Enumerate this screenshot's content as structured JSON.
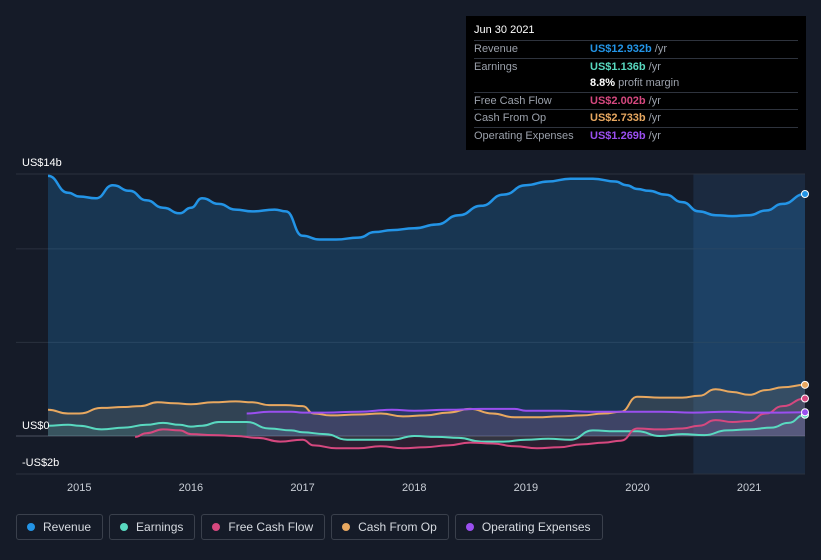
{
  "tooltip": {
    "date": "Jun 30 2021",
    "rows": [
      {
        "label": "Revenue",
        "value": "US$12.932b",
        "unit": "/yr",
        "color": "#2394e6"
      },
      {
        "label": "Earnings",
        "value": "US$1.136b",
        "unit": "/yr",
        "color": "#59d9c0"
      },
      {
        "label": "",
        "value": "8.8%",
        "unit": "profit margin",
        "color": "#ffffff"
      },
      {
        "label": "Free Cash Flow",
        "value": "US$2.002b",
        "unit": "/yr",
        "color": "#d6487f"
      },
      {
        "label": "Cash From Op",
        "value": "US$2.733b",
        "unit": "/yr",
        "color": "#e8a860"
      },
      {
        "label": "Operating Expenses",
        "value": "US$1.269b",
        "unit": "/yr",
        "color": "#9a4ff0"
      }
    ]
  },
  "legend": [
    {
      "label": "Revenue",
      "color": "#2394e6"
    },
    {
      "label": "Earnings",
      "color": "#59d9c0"
    },
    {
      "label": "Free Cash Flow",
      "color": "#d6487f"
    },
    {
      "label": "Cash From Op",
      "color": "#e8a860"
    },
    {
      "label": "Operating Expenses",
      "color": "#9a4ff0"
    }
  ],
  "chart_data": {
    "type": "line",
    "y_unit_labels": {
      "top": "US$14b",
      "zero": "US$0",
      "bottom": "-US$2b"
    },
    "ylim": [
      -2,
      14
    ],
    "xlim": [
      2014.72,
      2021.5
    ],
    "x_ticks": [
      "2015",
      "2016",
      "2017",
      "2018",
      "2019",
      "2020",
      "2021"
    ],
    "highlight_start": 2020.5,
    "series": [
      {
        "name": "Revenue",
        "color": "#2394e6",
        "fill": true,
        "x": [
          2014.72,
          2014.9,
          2015.0,
          2015.15,
          2015.3,
          2015.45,
          2015.6,
          2015.75,
          2015.9,
          2016.0,
          2016.1,
          2016.25,
          2016.4,
          2016.55,
          2016.75,
          2016.85,
          2017.0,
          2017.15,
          2017.3,
          2017.5,
          2017.65,
          2017.8,
          2018.0,
          2018.2,
          2018.4,
          2018.6,
          2018.8,
          2019.0,
          2019.2,
          2019.4,
          2019.6,
          2019.8,
          2019.9,
          2020.0,
          2020.1,
          2020.25,
          2020.4,
          2020.55,
          2020.7,
          2020.85,
          2021.0,
          2021.15,
          2021.3,
          2021.5
        ],
        "y": [
          13.9,
          13.0,
          12.8,
          12.7,
          13.4,
          13.1,
          12.6,
          12.2,
          11.9,
          12.2,
          12.7,
          12.4,
          12.1,
          12.0,
          12.1,
          12.0,
          10.7,
          10.5,
          10.5,
          10.6,
          10.9,
          11.0,
          11.1,
          11.3,
          11.8,
          12.3,
          12.9,
          13.4,
          13.6,
          13.75,
          13.75,
          13.6,
          13.4,
          13.2,
          13.1,
          12.9,
          12.5,
          12.0,
          11.8,
          11.75,
          11.8,
          12.05,
          12.4,
          12.932
        ]
      },
      {
        "name": "Earnings",
        "color": "#59d9c0",
        "x": [
          2014.72,
          2014.9,
          2015.0,
          2015.2,
          2015.4,
          2015.6,
          2015.75,
          2015.9,
          2016.0,
          2016.1,
          2016.25,
          2016.5,
          2016.7,
          2016.9,
          2017.0,
          2017.2,
          2017.4,
          2017.6,
          2017.8,
          2018.0,
          2018.2,
          2018.4,
          2018.6,
          2018.8,
          2019.0,
          2019.2,
          2019.4,
          2019.6,
          2019.8,
          2020.0,
          2020.2,
          2020.4,
          2020.6,
          2020.8,
          2021.0,
          2021.2,
          2021.35,
          2021.5
        ],
        "y": [
          0.55,
          0.6,
          0.55,
          0.35,
          0.45,
          0.6,
          0.7,
          0.6,
          0.5,
          0.55,
          0.75,
          0.75,
          0.4,
          0.3,
          0.2,
          0.1,
          -0.2,
          -0.2,
          -0.2,
          0.0,
          -0.05,
          -0.1,
          -0.3,
          -0.3,
          -0.2,
          -0.15,
          -0.2,
          0.3,
          0.25,
          0.25,
          0.0,
          0.1,
          0.05,
          0.3,
          0.35,
          0.45,
          0.7,
          1.136
        ]
      },
      {
        "name": "Free Cash Flow",
        "color": "#d6487f",
        "x": [
          2015.5,
          2015.6,
          2015.75,
          2015.9,
          2016.0,
          2016.2,
          2016.4,
          2016.6,
          2016.8,
          2017.0,
          2017.1,
          2017.3,
          2017.5,
          2017.7,
          2017.9,
          2018.1,
          2018.3,
          2018.5,
          2018.7,
          2018.9,
          2019.1,
          2019.3,
          2019.5,
          2019.7,
          2019.85,
          2020.0,
          2020.2,
          2020.4,
          2020.55,
          2020.7,
          2020.85,
          2021.0,
          2021.15,
          2021.3,
          2021.5
        ],
        "y": [
          -0.05,
          0.15,
          0.35,
          0.3,
          0.1,
          0.05,
          0.0,
          -0.1,
          -0.3,
          -0.2,
          -0.5,
          -0.65,
          -0.65,
          -0.55,
          -0.65,
          -0.6,
          -0.5,
          -0.35,
          -0.4,
          -0.55,
          -0.65,
          -0.6,
          -0.45,
          -0.35,
          -0.25,
          0.4,
          0.35,
          0.4,
          0.55,
          0.85,
          0.75,
          0.8,
          1.2,
          1.6,
          2.002
        ]
      },
      {
        "name": "Cash From Op",
        "color": "#e8a860",
        "x": [
          2014.72,
          2014.9,
          2015.0,
          2015.2,
          2015.4,
          2015.55,
          2015.7,
          2015.85,
          2016.0,
          2016.2,
          2016.4,
          2016.55,
          2016.7,
          2016.85,
          2017.0,
          2017.1,
          2017.25,
          2017.5,
          2017.7,
          2017.9,
          2018.1,
          2018.3,
          2018.5,
          2018.7,
          2018.9,
          2019.1,
          2019.3,
          2019.5,
          2019.7,
          2019.85,
          2020.0,
          2020.2,
          2020.4,
          2020.55,
          2020.7,
          2020.85,
          2021.0,
          2021.15,
          2021.3,
          2021.5
        ],
        "y": [
          1.4,
          1.2,
          1.2,
          1.5,
          1.55,
          1.6,
          1.8,
          1.75,
          1.7,
          1.8,
          1.85,
          1.8,
          1.65,
          1.65,
          1.6,
          1.2,
          1.1,
          1.15,
          1.2,
          1.05,
          1.1,
          1.25,
          1.45,
          1.2,
          1.0,
          1.0,
          1.05,
          1.1,
          1.2,
          1.3,
          2.1,
          2.05,
          2.05,
          2.15,
          2.5,
          2.35,
          2.2,
          2.45,
          2.6,
          2.733
        ]
      },
      {
        "name": "Operating Expenses",
        "color": "#9a4ff0",
        "x": [
          2016.5,
          2016.7,
          2016.9,
          2017.0,
          2017.2,
          2017.5,
          2017.8,
          2018.0,
          2018.3,
          2018.6,
          2018.9,
          2019.0,
          2019.3,
          2019.6,
          2019.9,
          2020.2,
          2020.5,
          2020.8,
          2021.0,
          2021.2,
          2021.5
        ],
        "y": [
          1.2,
          1.3,
          1.3,
          1.25,
          1.25,
          1.3,
          1.4,
          1.35,
          1.4,
          1.45,
          1.45,
          1.35,
          1.35,
          1.3,
          1.3,
          1.3,
          1.25,
          1.3,
          1.25,
          1.25,
          1.269
        ]
      }
    ]
  }
}
